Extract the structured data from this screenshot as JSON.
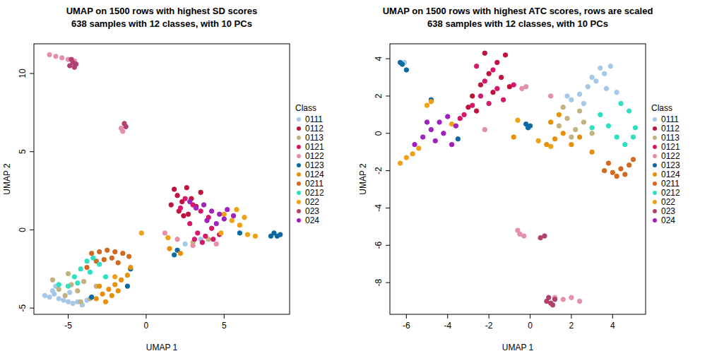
{
  "chart_data": [
    {
      "type": "scatter",
      "title": "UMAP on 1500 rows with highest SD scores",
      "subtitle": "638 samples with 12 classes, with 10 PCs",
      "x_label": "UMAP 1",
      "y_label": "UMAP 2",
      "legend_title": "Class",
      "legend": "right",
      "marker": "circle",
      "xlim": [
        -7.2,
        9.2
      ],
      "ylim": [
        -5.4,
        11.9
      ],
      "xticks": [
        -5,
        0,
        5
      ],
      "yticks": [
        -5,
        0,
        5,
        10
      ],
      "series": [
        {
          "name": "0111",
          "color": "#a6c8e8",
          "x": [
            -6.5,
            -6.2,
            -5.9,
            -5.6,
            -5.3,
            -5.0,
            -4.7,
            -4.4,
            -4.1,
            -3.8,
            -3.5,
            -5.8,
            -6.0,
            -4.9,
            2.5,
            3.5
          ],
          "values": [
            -4.2,
            -4.3,
            -4.1,
            -4.4,
            -4.5,
            -4.6,
            -4.7,
            -4.6,
            -4.8,
            -4.5,
            -4.3,
            -3.6,
            -3.9,
            -4.0,
            -0.9,
            -0.6
          ]
        },
        {
          "name": "0112",
          "color": "#c0123c",
          "x": [
            1.8,
            2.0,
            2.3,
            2.6,
            2.9,
            3.2,
            2.1,
            2.7,
            3.5,
            1.6,
            2.4
          ],
          "values": [
            2.6,
            2.2,
            1.8,
            2.7,
            2.0,
            1.5,
            1.2,
            1.0,
            2.4,
            1.6,
            0.9
          ]
        },
        {
          "name": "0113",
          "color": "#c2b280",
          "x": [
            -6.0,
            -5.6,
            -5.2,
            -4.8,
            -4.4,
            -4.0,
            -3.6,
            -3.2,
            -5.0,
            -4.2,
            3.0,
            4.0
          ],
          "values": [
            -3.2,
            -3.8,
            -4.2,
            -3.5,
            -3.9,
            -3.3,
            -4.4,
            -3.6,
            -2.8,
            -4.6,
            -0.8,
            -0.6
          ]
        },
        {
          "name": "0121",
          "color": "#d6176b",
          "x": [
            2.5,
            3.0,
            3.5,
            4.0,
            2.8,
            3.3,
            3.8,
            4.3,
            4.7,
            3.1,
            3.6,
            4.2,
            2.2
          ],
          "values": [
            2.0,
            1.6,
            1.2,
            0.8,
            0.4,
            -0.2,
            -0.4,
            -0.6,
            -0.3,
            -0.6,
            -0.8,
            0.1,
            1.4
          ]
        },
        {
          "name": "0122",
          "color": "#e58fa8",
          "x": [
            -6.2,
            -5.8,
            -5.4,
            -5.0,
            -4.6,
            -1.6,
            -1.5,
            1.2,
            2.0,
            3.0,
            4.5
          ],
          "values": [
            11.2,
            11.1,
            11.0,
            10.9,
            10.8,
            6.5,
            6.3,
            -0.2,
            -0.6,
            -1.0,
            -0.9
          ]
        },
        {
          "name": "0123",
          "color": "#0a6aa1",
          "x": [
            8.2,
            8.4,
            8.6,
            8.0,
            2.0,
            1.8,
            -1.0,
            -1.2,
            6.0,
            -3.5
          ],
          "values": [
            -0.2,
            -0.4,
            -0.3,
            -0.4,
            -1.3,
            -1.6,
            -2.5,
            -3.6,
            -0.2,
            -4.3
          ]
        },
        {
          "name": "0124",
          "color": "#e8900a",
          "x": [
            -3.2,
            -2.8,
            -2.4,
            -2.0,
            -1.6,
            -1.2,
            -2.6,
            -2.2,
            -1.8,
            -3.0,
            -1.0,
            1.5,
            2.2
          ],
          "values": [
            -4.4,
            -4.1,
            -3.8,
            -3.5,
            -3.2,
            -2.9,
            -4.6,
            -4.2,
            -3.9,
            -3.6,
            -2.4,
            -1.2,
            -1.5
          ]
        },
        {
          "name": "0211",
          "color": "#d2691e",
          "x": [
            -3.5,
            -3.0,
            -2.5,
            -2.0,
            -1.5,
            -1.1,
            -3.2,
            -2.7,
            -2.2,
            -1.8,
            -3.8
          ],
          "values": [
            -1.5,
            -1.4,
            -1.3,
            -1.4,
            -1.5,
            -1.7,
            -2.0,
            -1.9,
            -1.8,
            -2.1,
            -2.4
          ]
        },
        {
          "name": "0212",
          "color": "#2ee0c0",
          "x": [
            -5.0,
            -4.6,
            -4.2,
            -3.8,
            -3.4,
            -3.0,
            -4.4,
            -3.6,
            -5.6,
            -2.6
          ],
          "values": [
            -3.6,
            -3.0,
            -2.5,
            -2.0,
            -1.8,
            -2.2,
            -3.4,
            -2.7,
            -3.5,
            -3.0
          ]
        },
        {
          "name": "022",
          "color": "#f0a010",
          "x": [
            5.0,
            5.5,
            6.0,
            6.5,
            7.0,
            5.8,
            6.3,
            4.8,
            1.4,
            -0.3,
            -2.0
          ],
          "values": [
            1.0,
            0.6,
            0.3,
            -0.3,
            -0.4,
            1.3,
            0.8,
            -0.2,
            -0.5,
            -0.2,
            -3.0
          ]
        },
        {
          "name": "023",
          "color": "#b04070",
          "x": [
            -4.9,
            -4.7,
            -4.5,
            -4.8,
            -1.4,
            -1.3,
            -4.6
          ],
          "values": [
            10.5,
            10.7,
            10.6,
            10.9,
            6.8,
            6.6,
            10.4
          ]
        },
        {
          "name": "024",
          "color": "#a020c0",
          "x": [
            3.2,
            3.7,
            4.2,
            4.7,
            5.2,
            5.6,
            3.9,
            4.5,
            5.0,
            2.8
          ],
          "values": [
            1.4,
            1.6,
            1.2,
            1.0,
            1.3,
            0.9,
            0.6,
            0.4,
            0.7,
            1.8
          ]
        }
      ]
    },
    {
      "type": "scatter",
      "title": "UMAP on 1500 rows with highest ATC scores, rows are scaled",
      "subtitle": "638 samples with 12 classes, with 10 PCs",
      "x_label": "UMAP 1",
      "y_label": "UMAP 2",
      "legend_title": "Class",
      "legend": "right",
      "marker": "circle",
      "xlim": [
        -6.8,
        5.6
      ],
      "ylim": [
        -9.7,
        4.8
      ],
      "xticks": [
        -6,
        -4,
        -2,
        0,
        2,
        4
      ],
      "yticks": [
        -8,
        -6,
        -4,
        -2,
        0,
        2,
        4
      ],
      "series": [
        {
          "name": "0111",
          "color": "#a6c8e8",
          "x": [
            2.0,
            2.4,
            2.8,
            3.2,
            3.6,
            3.9,
            3.4,
            3.0,
            2.6,
            1.8,
            3.7,
            4.2,
            -6.1
          ],
          "values": [
            1.8,
            2.1,
            2.5,
            2.8,
            3.2,
            3.6,
            3.5,
            3.0,
            1.6,
            2.0,
            2.4,
            2.2,
            3.8
          ]
        },
        {
          "name": "0112",
          "color": "#c0123c",
          "x": [
            -2.8,
            -2.4,
            -2.0,
            -1.6,
            -1.2,
            -2.2,
            -1.8,
            -1.4,
            -3.0,
            -2.6,
            -1.0
          ],
          "values": [
            2.0,
            2.6,
            3.2,
            3.8,
            4.2,
            4.3,
            2.2,
            3.0,
            1.4,
            1.2,
            2.5
          ]
        },
        {
          "name": "0113",
          "color": "#c2b280",
          "x": [
            1.4,
            1.8,
            2.2,
            2.6,
            3.0,
            2.0,
            2.4,
            1.6
          ],
          "values": [
            0.4,
            0.8,
            0.2,
            0.6,
            0.0,
            -0.2,
            1.2,
            1.4
          ]
        },
        {
          "name": "0121",
          "color": "#d6176b",
          "x": [
            -3.2,
            -2.8,
            -2.4,
            -2.0,
            -1.6,
            -1.3,
            -2.6,
            -2.2,
            -1.8,
            -3.4,
            -0.8
          ],
          "values": [
            1.0,
            1.5,
            2.0,
            1.6,
            2.4,
            1.8,
            3.6,
            2.8,
            3.4,
            0.8,
            2.6
          ]
        },
        {
          "name": "0122",
          "color": "#e58fa8",
          "x": [
            -0.5,
            -0.3,
            -0.6,
            -0.4,
            -0.2,
            1.6,
            2.0,
            2.4,
            1.2,
            -2.2,
            1.0
          ],
          "values": [
            -5.4,
            -5.5,
            -5.2,
            2.4,
            2.5,
            -8.9,
            -8.8,
            -9.0,
            -8.8,
            0.2,
            2.0
          ]
        },
        {
          "name": "0123",
          "color": "#0a6aa1",
          "x": [
            -6.2,
            -6.0,
            -6.3,
            -0.2,
            -0.1,
            0.0,
            -4.8,
            -3.5
          ],
          "values": [
            3.7,
            3.4,
            3.8,
            0.5,
            0.3,
            0.4,
            1.8,
            -0.3
          ]
        },
        {
          "name": "0124",
          "color": "#e8900a",
          "x": [
            0.8,
            1.2,
            1.6,
            2.0,
            2.4,
            1.0,
            1.4,
            -0.8,
            3.0
          ],
          "values": [
            -0.6,
            -0.3,
            0.0,
            -0.6,
            -0.2,
            0.6,
            1.0,
            -0.2,
            -1.0
          ]
        },
        {
          "name": "0211",
          "color": "#d2691e",
          "x": [
            3.6,
            4.0,
            4.4,
            4.8,
            5.0,
            4.2,
            3.8,
            4.6
          ],
          "values": [
            -2.0,
            -2.1,
            -1.9,
            -1.7,
            -1.4,
            -2.3,
            -1.6,
            -2.2
          ]
        },
        {
          "name": "0212",
          "color": "#2ee0c0",
          "x": [
            3.4,
            3.8,
            4.2,
            4.6,
            5.0,
            5.1,
            4.8,
            4.4,
            3.0
          ],
          "values": [
            1.0,
            0.4,
            -0.2,
            -0.6,
            -0.2,
            0.3,
            1.2,
            1.6,
            0.3
          ]
        },
        {
          "name": "022",
          "color": "#f0a010",
          "x": [
            -6.3,
            -6.0,
            -5.7,
            -5.4,
            -5.0,
            -4.8,
            -3.8,
            -0.6,
            0.4,
            1.0
          ],
          "values": [
            -1.6,
            -1.3,
            -1.1,
            -0.8,
            1.5,
            1.7,
            0.5,
            0.7,
            -0.4,
            -0.7
          ]
        },
        {
          "name": "023",
          "color": "#b04070",
          "x": [
            0.8,
            1.0,
            1.2,
            0.9,
            1.1,
            0.7,
            0.5
          ],
          "values": [
            -9.0,
            -9.1,
            -8.9,
            -8.8,
            -9.2,
            -5.5,
            -5.6
          ]
        },
        {
          "name": "024",
          "color": "#a020c0",
          "x": [
            -5.6,
            -5.2,
            -4.8,
            -4.4,
            -4.0,
            -3.6,
            -5.0,
            -4.6,
            -4.2,
            -3.8
          ],
          "values": [
            -0.6,
            -0.2,
            0.2,
            0.6,
            0.9,
            0.4,
            0.6,
            -0.4,
            0.0,
            -0.6
          ]
        }
      ]
    }
  ]
}
